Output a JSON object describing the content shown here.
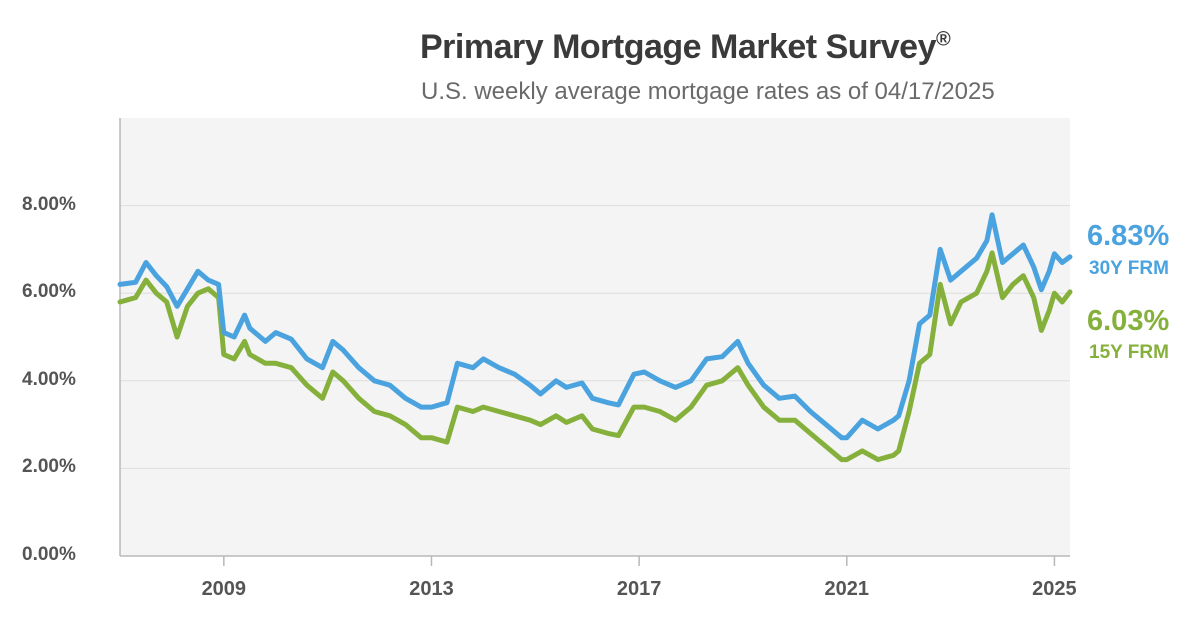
{
  "header": {
    "title": "Primary Mortgage Market Survey",
    "title_mark": "®",
    "subtitle": "U.S. weekly average mortgage rates as of 04/17/2025"
  },
  "colors": {
    "frm30": "#4aa3df",
    "frm15": "#86b03c",
    "plot_background": "#f4f4f4",
    "gridline": "#dddddd",
    "axis": "#b8b8b8"
  },
  "chart_data": {
    "type": "line",
    "title": "Primary Mortgage Market Survey®",
    "subtitle": "U.S. weekly average mortgage rates as of 04/17/2025",
    "xlabel": "",
    "ylabel": "",
    "xlim": [
      2007.0,
      2025.3
    ],
    "ylim": [
      0,
      10
    ],
    "y_ticks": [
      "0.00%",
      "2.00%",
      "4.00%",
      "6.00%",
      "8.00%"
    ],
    "y_tick_values": [
      0,
      2,
      4,
      6,
      8
    ],
    "x_ticks": [
      "2009",
      "2013",
      "2017",
      "2021",
      "2025"
    ],
    "x_tick_values": [
      2009,
      2013,
      2017,
      2021,
      2025
    ],
    "grid": true,
    "legend": "end-labels-right",
    "series": [
      {
        "name": "30Y FRM",
        "end_label": "6.83%",
        "points": [
          [
            2007.0,
            6.2
          ],
          [
            2007.3,
            6.25
          ],
          [
            2007.5,
            6.7
          ],
          [
            2007.7,
            6.4
          ],
          [
            2007.9,
            6.15
          ],
          [
            2008.1,
            5.7
          ],
          [
            2008.3,
            6.1
          ],
          [
            2008.5,
            6.5
          ],
          [
            2008.7,
            6.3
          ],
          [
            2008.9,
            6.2
          ],
          [
            2009.0,
            5.1
          ],
          [
            2009.2,
            5.0
          ],
          [
            2009.4,
            5.5
          ],
          [
            2009.5,
            5.2
          ],
          [
            2009.8,
            4.9
          ],
          [
            2010.0,
            5.1
          ],
          [
            2010.3,
            4.95
          ],
          [
            2010.6,
            4.5
          ],
          [
            2010.9,
            4.3
          ],
          [
            2011.1,
            4.9
          ],
          [
            2011.3,
            4.7
          ],
          [
            2011.6,
            4.3
          ],
          [
            2011.9,
            4.0
          ],
          [
            2012.2,
            3.9
          ],
          [
            2012.5,
            3.6
          ],
          [
            2012.8,
            3.4
          ],
          [
            2013.0,
            3.4
          ],
          [
            2013.3,
            3.5
          ],
          [
            2013.5,
            4.4
          ],
          [
            2013.8,
            4.3
          ],
          [
            2014.0,
            4.5
          ],
          [
            2014.3,
            4.3
          ],
          [
            2014.6,
            4.15
          ],
          [
            2014.9,
            3.9
          ],
          [
            2015.1,
            3.7
          ],
          [
            2015.4,
            4.0
          ],
          [
            2015.6,
            3.85
          ],
          [
            2015.9,
            3.95
          ],
          [
            2016.1,
            3.6
          ],
          [
            2016.4,
            3.5
          ],
          [
            2016.6,
            3.45
          ],
          [
            2016.9,
            4.15
          ],
          [
            2017.1,
            4.2
          ],
          [
            2017.4,
            4.0
          ],
          [
            2017.7,
            3.85
          ],
          [
            2018.0,
            4.0
          ],
          [
            2018.3,
            4.5
          ],
          [
            2018.6,
            4.55
          ],
          [
            2018.9,
            4.9
          ],
          [
            2019.1,
            4.4
          ],
          [
            2019.4,
            3.9
          ],
          [
            2019.7,
            3.6
          ],
          [
            2020.0,
            3.65
          ],
          [
            2020.3,
            3.3
          ],
          [
            2020.6,
            3.0
          ],
          [
            2020.9,
            2.7
          ],
          [
            2021.0,
            2.7
          ],
          [
            2021.3,
            3.1
          ],
          [
            2021.6,
            2.9
          ],
          [
            2021.9,
            3.1
          ],
          [
            2022.0,
            3.2
          ],
          [
            2022.2,
            4.0
          ],
          [
            2022.4,
            5.3
          ],
          [
            2022.6,
            5.5
          ],
          [
            2022.8,
            7.0
          ],
          [
            2023.0,
            6.3
          ],
          [
            2023.2,
            6.5
          ],
          [
            2023.5,
            6.8
          ],
          [
            2023.7,
            7.2
          ],
          [
            2023.8,
            7.79
          ],
          [
            2024.0,
            6.7
          ],
          [
            2024.2,
            6.9
          ],
          [
            2024.4,
            7.1
          ],
          [
            2024.6,
            6.6
          ],
          [
            2024.75,
            6.08
          ],
          [
            2024.9,
            6.5
          ],
          [
            2025.0,
            6.9
          ],
          [
            2025.15,
            6.7
          ],
          [
            2025.3,
            6.83
          ]
        ]
      },
      {
        "name": "15Y FRM",
        "end_label": "6.03%",
        "points": [
          [
            2007.0,
            5.8
          ],
          [
            2007.3,
            5.9
          ],
          [
            2007.5,
            6.3
          ],
          [
            2007.7,
            6.0
          ],
          [
            2007.9,
            5.8
          ],
          [
            2008.1,
            5.0
          ],
          [
            2008.3,
            5.7
          ],
          [
            2008.5,
            6.0
          ],
          [
            2008.7,
            6.1
          ],
          [
            2008.9,
            5.9
          ],
          [
            2009.0,
            4.6
          ],
          [
            2009.2,
            4.5
          ],
          [
            2009.4,
            4.9
          ],
          [
            2009.5,
            4.6
          ],
          [
            2009.8,
            4.4
          ],
          [
            2010.0,
            4.4
          ],
          [
            2010.3,
            4.3
          ],
          [
            2010.6,
            3.9
          ],
          [
            2010.9,
            3.6
          ],
          [
            2011.1,
            4.2
          ],
          [
            2011.3,
            4.0
          ],
          [
            2011.6,
            3.6
          ],
          [
            2011.9,
            3.3
          ],
          [
            2012.2,
            3.2
          ],
          [
            2012.5,
            3.0
          ],
          [
            2012.8,
            2.7
          ],
          [
            2013.0,
            2.7
          ],
          [
            2013.3,
            2.6
          ],
          [
            2013.5,
            3.4
          ],
          [
            2013.8,
            3.3
          ],
          [
            2014.0,
            3.4
          ],
          [
            2014.3,
            3.3
          ],
          [
            2014.6,
            3.2
          ],
          [
            2014.9,
            3.1
          ],
          [
            2015.1,
            3.0
          ],
          [
            2015.4,
            3.2
          ],
          [
            2015.6,
            3.05
          ],
          [
            2015.9,
            3.2
          ],
          [
            2016.1,
            2.9
          ],
          [
            2016.4,
            2.8
          ],
          [
            2016.6,
            2.75
          ],
          [
            2016.9,
            3.4
          ],
          [
            2017.1,
            3.4
          ],
          [
            2017.4,
            3.3
          ],
          [
            2017.7,
            3.1
          ],
          [
            2018.0,
            3.4
          ],
          [
            2018.3,
            3.9
          ],
          [
            2018.6,
            4.0
          ],
          [
            2018.9,
            4.3
          ],
          [
            2019.1,
            3.9
          ],
          [
            2019.4,
            3.4
          ],
          [
            2019.7,
            3.1
          ],
          [
            2020.0,
            3.1
          ],
          [
            2020.3,
            2.8
          ],
          [
            2020.6,
            2.5
          ],
          [
            2020.9,
            2.2
          ],
          [
            2021.0,
            2.2
          ],
          [
            2021.3,
            2.4
          ],
          [
            2021.6,
            2.2
          ],
          [
            2021.9,
            2.3
          ],
          [
            2022.0,
            2.4
          ],
          [
            2022.2,
            3.3
          ],
          [
            2022.4,
            4.4
          ],
          [
            2022.6,
            4.6
          ],
          [
            2022.8,
            6.2
          ],
          [
            2023.0,
            5.3
          ],
          [
            2023.2,
            5.8
          ],
          [
            2023.5,
            6.0
          ],
          [
            2023.7,
            6.5
          ],
          [
            2023.8,
            6.92
          ],
          [
            2024.0,
            5.9
          ],
          [
            2024.2,
            6.2
          ],
          [
            2024.4,
            6.4
          ],
          [
            2024.6,
            5.9
          ],
          [
            2024.75,
            5.15
          ],
          [
            2024.9,
            5.6
          ],
          [
            2025.0,
            6.0
          ],
          [
            2025.15,
            5.8
          ],
          [
            2025.3,
            6.03
          ]
        ]
      }
    ]
  }
}
